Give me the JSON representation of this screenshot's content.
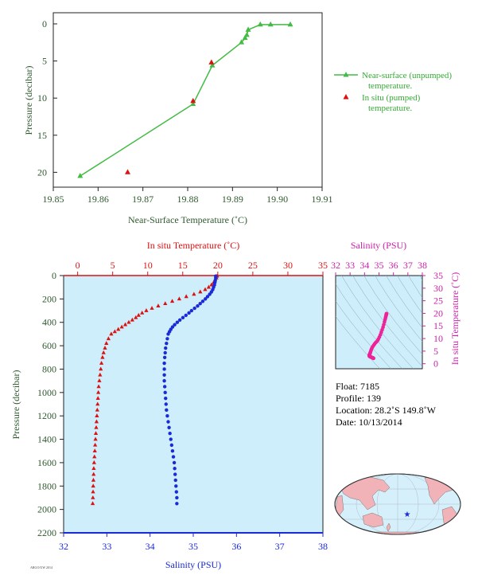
{
  "chart_data": [
    {
      "id": "top",
      "type": "scatter",
      "xlabel": "Near-Surface Temperature (˚C)",
      "ylabel": "Pressure (decibar)",
      "xlim": [
        19.85,
        19.91
      ],
      "ylim": [
        22,
        -1.5
      ],
      "xticks": [
        "19.85",
        "19.86",
        "19.87",
        "19.88",
        "19.89",
        "19.90",
        "19.91"
      ],
      "yticks": [
        "0",
        "5",
        "10",
        "15",
        "20"
      ],
      "series": [
        {
          "name": "Near-surface (unpumped) temperature.",
          "color": "#44bb44",
          "marker": "triangle-line",
          "x": [
            19.9029,
            19.8985,
            19.8962,
            19.8935,
            19.8932,
            19.8928,
            19.892,
            19.8855,
            19.8812,
            19.856
          ],
          "y": [
            0.1,
            0.1,
            0.1,
            0.8,
            1.5,
            1.9,
            2.5,
            5.6,
            10.8,
            20.5
          ]
        },
        {
          "name": "In situ (pumped) temperature.",
          "color": "#dd1111",
          "marker": "triangle",
          "x": [
            19.8853,
            19.8812,
            19.8666
          ],
          "y": [
            5.2,
            10.4,
            20.0
          ]
        }
      ]
    },
    {
      "id": "profile",
      "type": "scatter",
      "top_xlabel": "In situ Temperature (˚C)",
      "bottom_xlabel": "Salinity (PSU)",
      "ylabel": "Pressure (decibar)",
      "temp_lim": [
        -2,
        35
      ],
      "sal_lim": [
        32,
        38
      ],
      "ylim": [
        0,
        2200
      ],
      "temp_ticks": [
        "0",
        "5",
        "10",
        "15",
        "20",
        "25",
        "30",
        "35"
      ],
      "sal_ticks": [
        "32",
        "33",
        "34",
        "35",
        "36",
        "37",
        "38"
      ],
      "yticks": [
        "0",
        "200",
        "400",
        "600",
        "800",
        "1000",
        "1200",
        "1400",
        "1600",
        "1800",
        "2000",
        "2200"
      ],
      "temperature": {
        "color": "#dd1111",
        "pressure": [
          5,
          20,
          40,
          60,
          80,
          100,
          120,
          140,
          160,
          180,
          200,
          220,
          240,
          260,
          280,
          300,
          320,
          340,
          360,
          380,
          400,
          420,
          440,
          460,
          480,
          500,
          540,
          580,
          620,
          660,
          700,
          750,
          800,
          850,
          900,
          950,
          1000,
          1050,
          1100,
          1150,
          1200,
          1250,
          1300,
          1350,
          1400,
          1450,
          1500,
          1550,
          1600,
          1650,
          1700,
          1750,
          1800,
          1850,
          1900,
          1950
        ],
        "values": [
          19.9,
          19.8,
          19.6,
          19.4,
          19.1,
          18.7,
          18.2,
          17.5,
          16.6,
          15.5,
          14.5,
          13.5,
          12.5,
          11.5,
          10.6,
          9.8,
          9.2,
          8.7,
          8.3,
          7.8,
          7.3,
          6.8,
          6.3,
          5.8,
          5.3,
          4.8,
          4.4,
          4.1,
          3.9,
          3.7,
          3.55,
          3.4,
          3.3,
          3.2,
          3.1,
          3.0,
          2.95,
          2.9,
          2.85,
          2.8,
          2.75,
          2.7,
          2.65,
          2.6,
          2.55,
          2.5,
          2.45,
          2.4,
          2.35,
          2.3,
          2.28,
          2.25,
          2.22,
          2.2,
          2.18,
          2.15
        ]
      },
      "salinity": {
        "color": "#1a2ad9",
        "pressure": [
          5,
          20,
          40,
          60,
          80,
          100,
          120,
          140,
          160,
          180,
          200,
          220,
          240,
          260,
          280,
          300,
          320,
          340,
          360,
          380,
          400,
          420,
          440,
          460,
          480,
          500,
          540,
          580,
          620,
          660,
          700,
          750,
          800,
          850,
          900,
          950,
          1000,
          1050,
          1100,
          1150,
          1200,
          1250,
          1300,
          1350,
          1400,
          1450,
          1500,
          1550,
          1600,
          1650,
          1700,
          1750,
          1800,
          1850,
          1900,
          1950
        ],
        "values": [
          35.52,
          35.52,
          35.51,
          35.5,
          35.49,
          35.47,
          35.45,
          35.42,
          35.38,
          35.33,
          35.28,
          35.22,
          35.16,
          35.1,
          35.03,
          34.96,
          34.9,
          34.83,
          34.76,
          34.69,
          34.63,
          34.57,
          34.52,
          34.48,
          34.45,
          34.42,
          34.4,
          34.38,
          34.36,
          34.35,
          34.34,
          34.33,
          34.33,
          34.33,
          34.33,
          34.34,
          34.35,
          34.36,
          34.37,
          34.38,
          34.4,
          34.42,
          34.44,
          34.46,
          34.48,
          34.5,
          34.52,
          34.54,
          34.56,
          34.57,
          34.58,
          34.59,
          34.6,
          34.61,
          34.62,
          34.62
        ]
      }
    },
    {
      "id": "ts",
      "type": "scatter",
      "xlabel": "Salinity (PSU)",
      "ylabel": "In situ Temperature (˚C)",
      "xlim": [
        32,
        38
      ],
      "ylim": [
        -2,
        35
      ],
      "xticks": [
        "32",
        "33",
        "34",
        "35",
        "36",
        "37",
        "38"
      ],
      "yticks": [
        "0",
        "5",
        "10",
        "15",
        "20",
        "25",
        "30",
        "35"
      ],
      "color": "#ee2299"
    }
  ],
  "info": {
    "float": "Float: 7185",
    "profile": "Profile: 139",
    "location": "Location: 28.2˚S 149.8˚W",
    "date": "Date: 10/13/2014"
  },
  "footer": "ARGO/UW 2014"
}
